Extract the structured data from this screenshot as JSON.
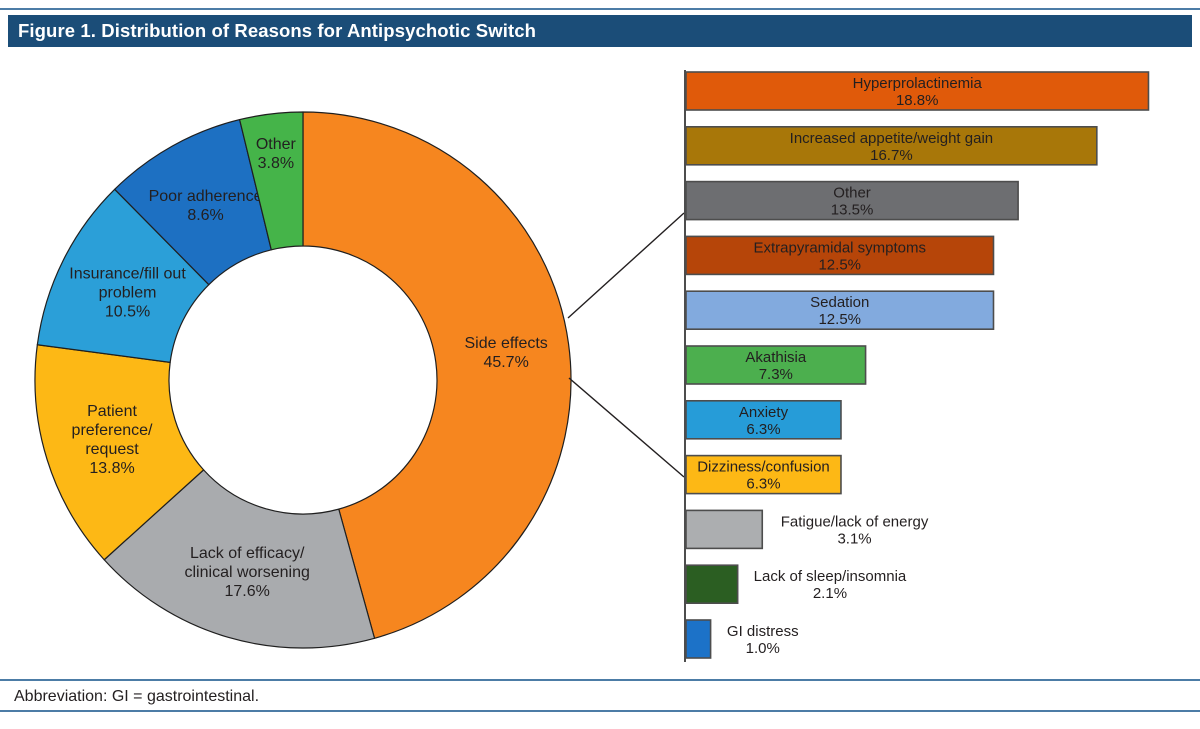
{
  "figure": {
    "title": "Figure 1. Distribution of Reasons for Antipsychotic Switch",
    "footnote": "Abbreviation: GI = gastrointestinal."
  },
  "colors": {
    "title_bar_bg": "#1B4D78",
    "title_text": "#FFFFFF",
    "rule_blue": "#4C7CA6",
    "body_text": "#231F20",
    "bar_stroke": "#4D4D4D",
    "donut_stroke": "#1F1F1F",
    "leader_line": "#231F20"
  },
  "chart_data": [
    {
      "type": "pie",
      "subtype": "donut",
      "units": "%",
      "start_angle_deg": 0,
      "direction": "clockwise",
      "segments": [
        {
          "label": "Side effects",
          "value": 45.7,
          "pct": "45.7%",
          "color": "#F6861F",
          "label_r": 205,
          "label_lines": [
            "Side effects",
            "45.7%"
          ]
        },
        {
          "label": "Lack of efficacy/clinical worsening",
          "value": 17.6,
          "pct": "17.6%",
          "color": "#A9ABAE",
          "label_r": 200,
          "label_lines": [
            "Lack of efficacy/",
            "clinical worsening",
            "17.6%"
          ]
        },
        {
          "label": "Patient preference/request",
          "value": 13.8,
          "pct": "13.8%",
          "color": "#FDB815",
          "label_r": 200,
          "label_lines": [
            "Patient",
            "preference/",
            "request",
            "13.8%"
          ]
        },
        {
          "label": "Insurance/fill out problem",
          "value": 10.5,
          "pct": "10.5%",
          "color": "#2B9FD8",
          "label_r": 196,
          "label_lines": [
            "Insurance/fill out",
            "problem",
            "10.5%"
          ]
        },
        {
          "label": "Poor adherence",
          "value": 8.6,
          "pct": "8.6%",
          "color": "#1D70C2",
          "label_r": 200,
          "label_lines": [
            "Poor adherence",
            "8.6%"
          ]
        },
        {
          "label": "Other",
          "value": 3.8,
          "pct": "3.8%",
          "color": "#45B449",
          "label_r": 228,
          "label_lines": [
            "Other",
            "3.8%"
          ]
        }
      ]
    },
    {
      "type": "bar",
      "orientation": "horizontal",
      "units": "%",
      "xlim": [
        0,
        19.5
      ],
      "grid": false,
      "categories": [
        "Hyperprolactinemia",
        "Increased appetite/weight gain",
        "Other",
        "Extrapyramidal symptoms",
        "Sedation",
        "Akathisia",
        "Anxiety",
        "Dizziness/confusion",
        "Fatigue/lack of energy",
        "Lack of sleep/insomnia",
        "GI distress"
      ],
      "values": [
        18.8,
        16.7,
        13.5,
        12.5,
        12.5,
        7.3,
        6.3,
        6.3,
        3.1,
        2.1,
        1.0
      ],
      "bars": [
        {
          "label": "Hyperprolactinemia",
          "value": 18.8,
          "pct": "18.8%",
          "color": "#E05A0A",
          "label_inside": true
        },
        {
          "label": "Increased appetite/weight gain",
          "value": 16.7,
          "pct": "16.7%",
          "color": "#A87709",
          "label_inside": true
        },
        {
          "label": "Other",
          "value": 13.5,
          "pct": "13.5%",
          "color": "#6D6E71",
          "label_inside": true
        },
        {
          "label": "Extrapyramidal symptoms",
          "value": 12.5,
          "pct": "12.5%",
          "color": "#B64509",
          "label_inside": true
        },
        {
          "label": "Sedation",
          "value": 12.5,
          "pct": "12.5%",
          "color": "#82AADE",
          "label_inside": true
        },
        {
          "label": "Akathisia",
          "value": 7.3,
          "pct": "7.3%",
          "color": "#4CAF4E",
          "label_inside": true
        },
        {
          "label": "Anxiety",
          "value": 6.3,
          "pct": "6.3%",
          "color": "#269CD8",
          "label_inside": true
        },
        {
          "label": "Dizziness/confusion",
          "value": 6.3,
          "pct": "6.3%",
          "color": "#FDB815",
          "label_inside": true
        },
        {
          "label": "Fatigue/lack of energy",
          "value": 3.1,
          "pct": "3.1%",
          "color": "#ACAEB0",
          "label_inside": false
        },
        {
          "label": "Lack of sleep/insomnia",
          "value": 2.1,
          "pct": "2.1%",
          "color": "#2B5E22",
          "label_inside": false
        },
        {
          "label": "GI distress",
          "value": 1.0,
          "pct": "1.0%",
          "color": "#1C72C8",
          "label_inside": false
        }
      ]
    }
  ]
}
